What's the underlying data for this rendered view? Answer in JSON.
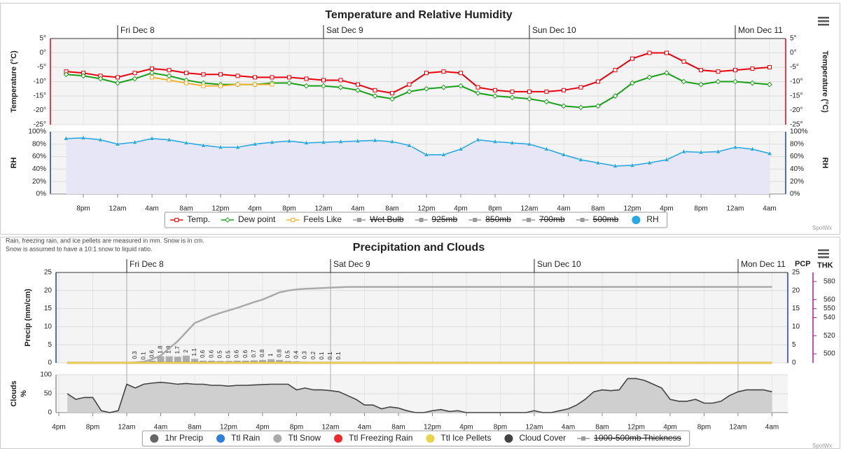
{
  "chart_data": [
    {
      "type": "line",
      "title": "Temperature and Relative Humidity",
      "credit": "SpotWx",
      "categories": [
        null,
        "8pm",
        null,
        "12am",
        null,
        "4am",
        null,
        "8am",
        null,
        "12pm",
        null,
        "4pm",
        null,
        "8pm",
        null,
        "12am",
        null,
        "4am",
        null,
        "8am",
        null,
        "12pm",
        null,
        "4pm",
        null,
        "8pm",
        null,
        "12am",
        null,
        "4am",
        null,
        "8am",
        null,
        "12pm",
        null,
        "4pm",
        null,
        "8pm",
        null,
        "12am",
        null,
        "4am"
      ],
      "days": [
        null,
        null,
        null,
        "Fri Dec 8",
        null,
        null,
        null,
        null,
        null,
        null,
        null,
        null,
        null,
        null,
        null,
        "Sat Dec 9",
        null,
        null,
        null,
        null,
        null,
        null,
        null,
        null,
        null,
        null,
        null,
        "Sun Dec 10",
        null,
        null,
        null,
        null,
        null,
        null,
        null,
        null,
        null,
        null,
        null,
        "Mon Dec 11",
        null,
        null
      ],
      "y_label": "Temperature (°C)",
      "axis_color": "#e8000b",
      "mirror_axis": true,
      "grid": true,
      "ylim": [
        -25,
        5
      ],
      "yticks": [
        {
          "value": 5,
          "label": "5°"
        },
        {
          "value": 0,
          "label": "0°"
        },
        {
          "value": -5,
          "label": "-5°"
        },
        {
          "value": -10,
          "label": "-10°"
        },
        {
          "value": -15,
          "label": "-15°"
        },
        {
          "value": -20,
          "label": "-20°"
        },
        {
          "value": -25,
          "label": "-25°"
        }
      ],
      "series": [
        {
          "name": "Temp.",
          "color": "#e8000b",
          "marker": "square",
          "values": [
            -6.5,
            -7,
            -8,
            -8.5,
            -7,
            -5.5,
            -6,
            -7,
            -7.5,
            -7.5,
            -8,
            -8.5,
            -8.5,
            -8.5,
            -9,
            -9.5,
            -9.5,
            -11,
            -13,
            -14,
            -11,
            -7,
            -6.5,
            -7,
            -12,
            -13,
            -13.5,
            -13.5,
            -13.5,
            -13,
            -12,
            -10,
            -6,
            -2,
            0,
            0,
            -3,
            -6,
            -6.5,
            -6,
            -5.5,
            -5
          ]
        },
        {
          "name": "Dew point",
          "color": "#19a019",
          "marker": "diamond",
          "values": [
            -7.5,
            -8,
            -9,
            -10.5,
            -9,
            -7,
            -8,
            -9.5,
            -10.5,
            -11,
            -11,
            -11,
            -10.5,
            -10.5,
            -11.5,
            -11.5,
            -12,
            -13,
            -15,
            -16,
            -13.5,
            -12.5,
            -12,
            -11.5,
            -14,
            -15,
            -15.5,
            -16,
            -17,
            -18.5,
            -19,
            -18.5,
            -15,
            -10.5,
            -8.5,
            -7,
            -10,
            -11,
            -10,
            -10,
            -10.5,
            -11
          ]
        },
        {
          "name": "Feels Like",
          "color": "#f0b030",
          "marker": "square",
          "values": [
            null,
            null,
            null,
            null,
            null,
            -8.5,
            -9.5,
            -10.5,
            -11.5,
            -11.5,
            -11,
            -11,
            -11,
            null,
            null,
            null,
            null,
            null,
            null,
            null,
            null,
            null,
            null,
            null,
            null,
            null,
            null,
            null,
            null,
            null,
            null,
            null,
            null,
            null,
            null,
            null,
            null,
            null,
            null,
            null,
            null,
            null
          ]
        }
      ],
      "hidden_series": [
        "Wet Bulb",
        "925mb",
        "850mb",
        "700mb",
        "500mb"
      ]
    },
    {
      "type": "area",
      "y_label": "RH",
      "axis_color": "#1a3fb5",
      "mirror_axis": true,
      "grid": true,
      "ylim": [
        0,
        100
      ],
      "yticks": [
        {
          "value": 100,
          "label": "100%"
        },
        {
          "value": 80,
          "label": "80%"
        },
        {
          "value": 60,
          "label": "60%"
        },
        {
          "value": 40,
          "label": "40%"
        },
        {
          "value": 20,
          "label": "20%"
        },
        {
          "value": 0,
          "label": "0%"
        }
      ],
      "series": [
        {
          "name": "RH",
          "color": "#2aa8e0",
          "area_color": "#e6e6f7",
          "marker": "triangle",
          "values": [
            89,
            90,
            87,
            80,
            83,
            89,
            87,
            82,
            78,
            75,
            75,
            80,
            83,
            85,
            82,
            83,
            84,
            85,
            86,
            84,
            78,
            63,
            63,
            72,
            87,
            84,
            82,
            80,
            72,
            63,
            55,
            50,
            45,
            46,
            50,
            55,
            68,
            67,
            68,
            75,
            72,
            65
          ]
        }
      ]
    },
    {
      "type": "combo",
      "title": "Precipitation and Clouds",
      "credit": "SpotWx",
      "notes": [
        "Rain, freezing rain, and ice pellets are measured in mm. Snow is in cm.",
        "Snow is assumed to have a 10:1 snow to liquid ratio."
      ],
      "categories": [
        "4pm",
        null,
        null,
        null,
        "8pm",
        null,
        null,
        null,
        "12am",
        null,
        null,
        null,
        "4am",
        null,
        null,
        null,
        "8am",
        null,
        null,
        null,
        "12pm",
        null,
        null,
        null,
        "4pm",
        null,
        null,
        null,
        "8pm",
        null,
        null,
        null,
        "12am",
        null,
        null,
        null,
        "4am",
        null,
        null,
        null,
        "8am",
        null,
        null,
        null,
        "12pm",
        null,
        null,
        null,
        "4pm",
        null,
        null,
        null,
        "8pm",
        null,
        null,
        null,
        "12am",
        null,
        null,
        null,
        "4am",
        null,
        null,
        null,
        "8am",
        null,
        null,
        null,
        "12pm",
        null,
        null,
        null,
        "4pm",
        null,
        null,
        null,
        "8pm",
        null,
        null,
        null,
        "12am",
        null,
        null,
        null,
        "4am"
      ],
      "days": [
        null,
        null,
        null,
        null,
        null,
        null,
        null,
        null,
        "Fri Dec 8",
        null,
        null,
        null,
        null,
        null,
        null,
        null,
        null,
        null,
        null,
        null,
        null,
        null,
        null,
        null,
        null,
        null,
        null,
        null,
        null,
        null,
        null,
        null,
        "Sat Dec 9",
        null,
        null,
        null,
        null,
        null,
        null,
        null,
        null,
        null,
        null,
        null,
        null,
        null,
        null,
        null,
        null,
        null,
        null,
        null,
        null,
        null,
        null,
        null,
        "Sun Dec 10",
        null,
        null,
        null,
        null,
        null,
        null,
        null,
        null,
        null,
        null,
        null,
        null,
        null,
        null,
        null,
        null,
        null,
        null,
        null,
        null,
        null,
        null,
        null,
        "Mon Dec 11",
        null,
        null,
        null,
        null
      ],
      "y_label": "Precip (mm/cm)",
      "y2_title": "PCP",
      "axis_color": "#1a3fb5",
      "mirror_axis": true,
      "grid": true,
      "ylim": [
        0,
        25
      ],
      "yticks": [
        25,
        20,
        15,
        10,
        5,
        0
      ],
      "thickness_axis": {
        "title": "THK",
        "color": "#b0199a",
        "lim": [
          490,
          590
        ],
        "ticks": [
          580,
          560,
          550,
          540,
          520,
          500
        ]
      },
      "series": [
        {
          "name": "1hr Precip",
          "kind": "bar",
          "color": "#666666",
          "values": [
            null,
            null,
            null,
            null,
            null,
            null,
            null,
            null,
            null,
            0.3,
            0.1,
            0.6,
            1.8,
            1.8,
            1.7,
            2,
            1.1,
            0.6,
            0.6,
            0.5,
            0.5,
            0.6,
            0.6,
            0.7,
            0.8,
            1,
            0.8,
            0.5,
            0.4,
            0.3,
            0.2,
            0.1,
            0.1,
            0.1,
            null,
            null,
            null,
            null,
            null,
            null,
            null,
            null,
            null,
            null,
            null,
            null,
            null,
            null,
            null,
            null,
            null,
            null,
            null,
            null,
            null,
            null,
            null,
            null,
            null,
            null,
            null,
            null,
            null,
            null,
            null,
            null,
            null,
            null,
            null,
            null,
            null,
            null,
            null,
            null,
            null,
            null,
            null,
            null,
            null,
            null,
            null,
            null,
            null,
            null,
            null
          ]
        },
        {
          "name": "Ttl Rain",
          "kind": "line",
          "color": "#2f7ed8",
          "values": [
            null,
            0,
            0,
            0,
            0,
            0,
            0,
            0,
            0,
            0,
            0,
            0,
            0,
            0,
            0,
            0,
            0,
            0,
            0,
            0,
            0,
            0,
            0,
            0,
            0,
            0,
            0,
            0,
            0,
            0,
            0,
            0,
            0,
            0,
            0,
            0,
            0,
            0,
            0,
            0,
            0,
            0,
            0,
            0,
            0,
            0,
            0,
            0,
            0,
            0,
            0,
            0,
            0,
            0,
            0,
            0,
            0,
            0,
            0,
            0,
            0,
            0,
            0,
            0,
            0,
            0,
            0,
            0,
            0,
            0,
            0,
            0,
            0,
            0,
            0,
            0,
            0,
            0,
            0,
            0,
            0,
            0,
            0,
            0,
            0
          ]
        },
        {
          "name": "Ttl Snow",
          "kind": "line",
          "color": "#aaaaaa",
          "values": [
            null,
            0,
            0,
            0,
            0,
            0,
            0,
            0,
            0,
            0.1,
            0.3,
            1,
            2,
            4,
            6,
            8.5,
            11,
            12,
            13,
            13.8,
            14.5,
            15.2,
            16,
            16.8,
            17.5,
            18.5,
            19.5,
            20,
            20.3,
            20.5,
            20.6,
            20.7,
            20.8,
            20.9,
            21,
            21,
            21,
            21,
            21,
            21,
            21,
            21,
            21,
            21,
            21,
            21,
            21,
            21,
            21,
            21,
            21,
            21,
            21,
            21,
            21,
            21,
            21,
            21,
            21,
            21,
            21,
            21,
            21,
            21,
            21,
            21,
            21,
            21,
            21,
            21,
            21,
            21,
            21,
            21,
            21,
            21,
            21,
            21,
            21,
            21,
            21,
            21,
            21,
            21,
            21
          ]
        },
        {
          "name": "Ttl Freezing Rain",
          "kind": "line",
          "color": "#ee2a2a",
          "values": [
            null,
            0,
            0,
            0,
            0,
            0,
            0,
            0,
            0,
            0,
            0,
            0,
            0,
            0,
            0,
            0,
            0,
            0,
            0,
            0,
            0,
            0,
            0,
            0,
            0,
            0,
            0,
            0,
            0,
            0,
            0,
            0,
            0,
            0,
            0,
            0,
            0,
            0,
            0,
            0,
            0,
            0,
            0,
            0,
            0,
            0,
            0,
            0,
            0,
            0,
            0,
            0,
            0,
            0,
            0,
            0,
            0,
            0,
            0,
            0,
            0,
            0,
            0,
            0,
            0,
            0,
            0,
            0,
            0,
            0,
            0,
            0,
            0,
            0,
            0,
            0,
            0,
            0,
            0,
            0,
            0,
            0,
            0,
            0,
            0
          ]
        },
        {
          "name": "Ttl Ice Pellets",
          "kind": "line",
          "color": "#e8d44a",
          "values": [
            null,
            0,
            0,
            0,
            0,
            0,
            0,
            0,
            0,
            0,
            0,
            0,
            0,
            0,
            0,
            0,
            0,
            0,
            0,
            0,
            0,
            0,
            0,
            0,
            0,
            0,
            0,
            0,
            0,
            0,
            0,
            0,
            0,
            0,
            0,
            0,
            0,
            0,
            0,
            0,
            0,
            0,
            0,
            0,
            0,
            0,
            0,
            0,
            0,
            0,
            0,
            0,
            0,
            0,
            0,
            0,
            0,
            0,
            0,
            0,
            0,
            0,
            0,
            0,
            0,
            0,
            0,
            0,
            0,
            0,
            0,
            0,
            0,
            0,
            0,
            0,
            0,
            0,
            0,
            0,
            0,
            0,
            0,
            0,
            0
          ]
        }
      ]
    },
    {
      "type": "area",
      "y_label": [
        "Clouds",
        "%"
      ],
      "axis_color": "#999999",
      "mirror_axis": false,
      "grid": true,
      "ylim": [
        0,
        100
      ],
      "yticks": [
        100,
        50,
        0
      ],
      "series": [
        {
          "name": "Cloud Cover",
          "color": "#444444",
          "area_color": "#cfcfcf",
          "values": [
            null,
            50,
            35,
            40,
            40,
            5,
            0,
            5,
            75,
            65,
            75,
            78,
            80,
            78,
            75,
            77,
            75,
            75,
            72,
            72,
            70,
            72,
            72,
            73,
            74,
            75,
            75,
            75,
            60,
            65,
            60,
            60,
            58,
            55,
            45,
            35,
            20,
            20,
            10,
            15,
            12,
            5,
            0,
            0,
            5,
            8,
            3,
            5,
            0,
            0,
            0,
            0,
            0,
            0,
            0,
            0,
            5,
            0,
            0,
            5,
            10,
            20,
            35,
            55,
            60,
            58,
            60,
            90,
            90,
            85,
            75,
            65,
            35,
            30,
            30,
            35,
            25,
            25,
            30,
            45,
            55,
            60,
            60,
            60,
            55
          ]
        }
      ],
      "hidden_series": [
        "1000-500mb Thickness"
      ]
    }
  ]
}
